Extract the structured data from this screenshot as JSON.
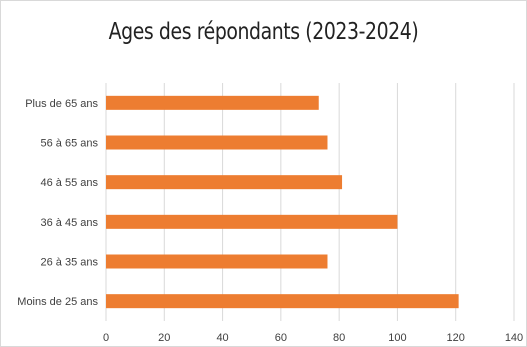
{
  "chart_data": {
    "type": "bar",
    "orientation": "horizontal",
    "title": "Ages des répondants (2023-2024)",
    "categories": [
      "Plus de 65 ans",
      "56 à 65 ans",
      "46 à 55 ans",
      "36 à 45 ans",
      "26 à 35 ans",
      "Moins de 25 ans"
    ],
    "values": [
      73,
      76,
      81,
      100,
      76,
      121
    ],
    "xlim": [
      0,
      140
    ],
    "x_ticks": [
      0,
      20,
      40,
      60,
      80,
      100,
      120,
      140
    ],
    "xlabel": "",
    "ylabel": "",
    "grid": "vertical",
    "legend": "none",
    "bar_color": "#ED7D31",
    "grid_color": "#D9D9D9"
  }
}
